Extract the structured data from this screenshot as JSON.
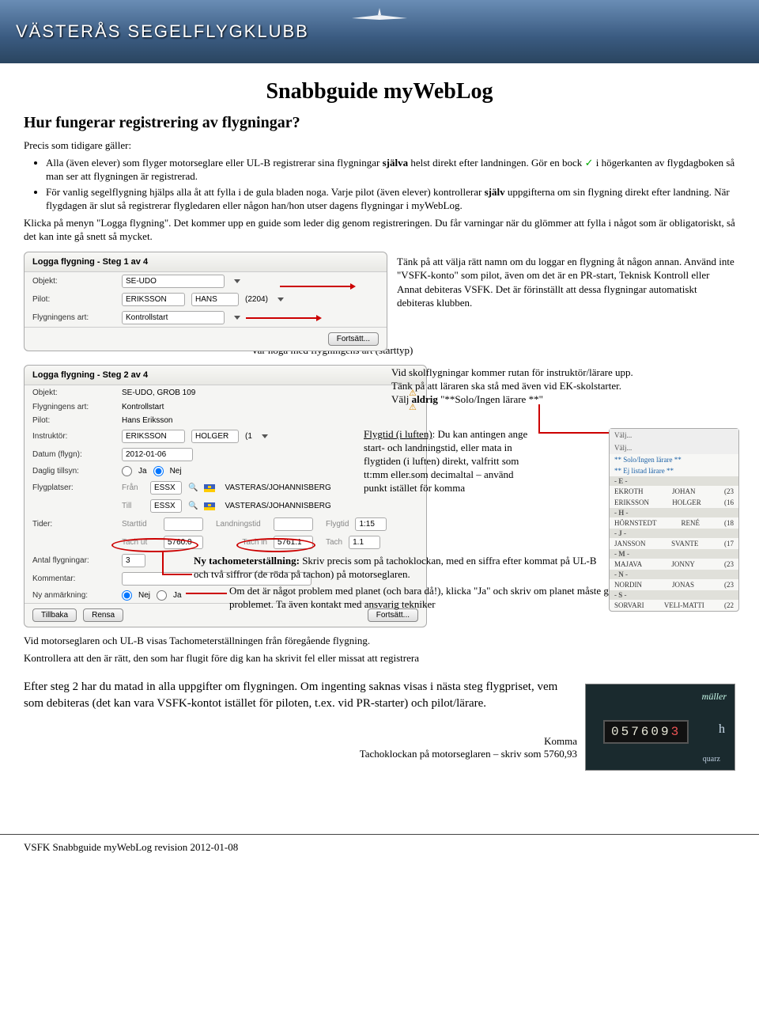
{
  "banner": {
    "text": "VÄSTERÅS SEGELFLYGKLUBB"
  },
  "doc": {
    "title": "Snabbguide myWebLog",
    "h2": "Hur fungerar registrering av flygningar?",
    "intro": "Precis som tidigare gäller:",
    "bullet1a": "Alla (även elever) som flyger motorseglare eller UL-B registrerar sina flygningar ",
    "bullet1b": "själva",
    "bullet1c": " helst direkt efter landningen. Gör en bock ",
    "bullet1d": " i högerkanten av flygdagboken så man ser att flygningen är registrerad.",
    "bullet2a": "För vanlig segelflygning hjälps alla åt att fylla i de gula bladen noga. Varje pilot (även elever) kontrollerar ",
    "bullet2b": "själv",
    "bullet2c": " uppgifterna om sin flygning direkt efter landning. När flygdagen är slut så registrerar flygledaren eller någon han/hon utser dagens flygningar i myWebLog.",
    "p2": "Klicka på menyn \"Logga flygning\". Det kommer upp en guide som leder dig genom registreringen. Du får varningar när du glömmer att fylla i något som är obligatoriskt, så det kan inte gå snett så mycket.",
    "step1_right1": "Tänk på att välja rätt namn om du loggar en flygning åt någon annan. Använd inte \"VSFK-konto\" som pilot, även om det är en PR-start, Teknisk Kontroll eller Annat debiteras VSFK. Det är förinställt att dessa flygningar automatiskt debiteras klubben.",
    "step1_bottom": "Var noga med flygningens art (starttyp)",
    "annot_skol1": "Vid skolflygningar kommer rutan för instruktör/lärare upp.",
    "annot_skol2": "Tänk på att läraren ska stå med även vid EK-skolstarter.",
    "annot_skol3a": "Välj ",
    "annot_skol3b": "aldrig",
    "annot_skol3c": " \"**Solo/Ingen lärare **\"",
    "annot_flygtid_t": "Flygtid (i luften)",
    "annot_flygtid_b": ": Du kan antingen ange start- och landningstid, eller mata in flygtiden (i luften) direkt, valfritt som tt:mm eller.som decimaltal – använd punkt istället för komma",
    "annot_tacho_t": "Ny tachometerställning:",
    "annot_tacho_b": " Skriv precis som på tachoklockan, med en siffra efter kommat på UL-B och två siffror (de röda på tachon) på motorseglaren.",
    "annot_problem": "Om det är något problem med planet (och bara då!), klicka \"Ja\" och skriv om planet måste groundas och beskriv problemet. Ta även kontakt med ansvarig tekniker",
    "after_step2a": "Vid motorseglaren och UL-B visas Tachometerställningen från föregående flygning.",
    "after_step2b": "Kontrollera att den är rätt, den som har flugit före dig kan ha skrivit fel eller missat att registrera",
    "after_step3": "Efter steg 2 har du matad in alla uppgifter om flygningen. Om ingenting saknas visas i nästa steg flygpriset, vem som debiteras (det kan vara VSFK-kontot istället för piloten, t.ex. vid PR-starter) och pilot/lärare.",
    "tacho_cap1": "Komma",
    "tacho_cap2": "Tachoklockan på motorseglaren – skriv som 5760,93",
    "footer": "VSFK Snabbguide myWebLog revision 2012-01-08"
  },
  "step1": {
    "title": "Logga flygning - Steg 1 av 4",
    "lbl_objekt": "Objekt:",
    "val_objekt": "SE-UDO",
    "lbl_pilot": "Pilot:",
    "val_pilot_last": "ERIKSSON",
    "val_pilot_first": "HANS",
    "val_pilot_num": "(2204)",
    "lbl_art": "Flygningens art:",
    "val_art": "Kontrollstart",
    "btn": "Fortsätt..."
  },
  "step2": {
    "title": "Logga flygning - Steg 2 av 4",
    "lbl_objekt": "Objekt:",
    "val_objekt": "SE-UDO, GROB 109",
    "lbl_art": "Flygningens art:",
    "val_art": "Kontrollstart",
    "lbl_pilot": "Pilot:",
    "val_pilot": "Hans Eriksson",
    "lbl_instr": "Instruktör:",
    "val_instr_last": "ERIKSSON",
    "val_instr_first": "HOLGER",
    "val_instr_num": "(1",
    "lbl_datum": "Datum (flygn):",
    "val_datum": "2012-01-06",
    "lbl_tillsyn": "Daglig tillsyn:",
    "opt_ja": "Ja",
    "opt_nej": "Nej",
    "lbl_flygplatser": "Flygplatser:",
    "lbl_fran": "Från",
    "lbl_till": "Till",
    "val_essx": "ESSX",
    "val_airport": "VASTERAS/JOHANNISBERG",
    "lbl_tider": "Tider:",
    "lbl_starttid": "Starttid",
    "lbl_landtid": "Landningstid",
    "lbl_flygtid": "Flygtid",
    "val_flygtid": "1:15",
    "lbl_tachut": "Tach ut",
    "val_tachut": "5760.0",
    "lbl_tachin": "Tach in",
    "val_tachin": "5761.1",
    "lbl_tach": "Tach",
    "val_tach": "1.1",
    "lbl_antal": "Antal flygningar:",
    "val_antal": "3",
    "lbl_kommentar": "Kommentar:",
    "lbl_anm": "Ny anmärkning:",
    "btn_tillbaka": "Tillbaka",
    "btn_rensa": "Rensa",
    "btn_fortsatt": "Fortsätt..."
  },
  "instr_list": {
    "head1": "Välj...",
    "head2": "Välj...",
    "star": "** Solo/Ingen lärare **",
    "ej": "** Ej listad lärare **",
    "rows": [
      {
        "sep": "- E -"
      },
      {
        "l": "EKROTH",
        "f": "JOHAN",
        "n": "(23"
      },
      {
        "l": "ERIKSSON",
        "f": "HOLGER",
        "n": "(16"
      },
      {
        "sep": "- H -"
      },
      {
        "l": "HÖRNSTEDT",
        "f": "RENÉ",
        "n": "(18"
      },
      {
        "sep": "- J -"
      },
      {
        "l": "JANSSON",
        "f": "SVANTE",
        "n": "(17"
      },
      {
        "sep": "- M -"
      },
      {
        "l": "MAJAVA",
        "f": "JONNY",
        "n": "(23"
      },
      {
        "sep": "- N -"
      },
      {
        "l": "NORDIN",
        "f": "JONAS",
        "n": "(23"
      },
      {
        "sep": "- S -"
      },
      {
        "l": "SORVARI",
        "f": "VELI-MATTI",
        "n": "(22"
      }
    ]
  },
  "tacho": {
    "brand": "müller",
    "digits": "057609",
    "red": "3",
    "h": "h",
    "quarz": "quarz"
  }
}
